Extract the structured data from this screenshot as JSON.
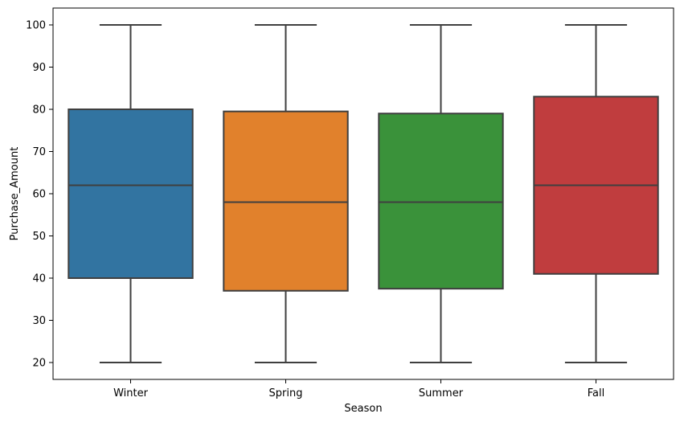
{
  "chart_data": {
    "type": "box",
    "title": "",
    "xlabel": "Season",
    "ylabel": "Purchase_Amount",
    "ylim": [
      16,
      104
    ],
    "yticks": [
      20,
      30,
      40,
      50,
      60,
      70,
      80,
      90,
      100
    ],
    "grid": false,
    "categories": [
      "Winter",
      "Spring",
      "Summer",
      "Fall"
    ],
    "boxes": [
      {
        "category": "Winter",
        "min": 20,
        "q1": 40,
        "median": 62,
        "q3": 80,
        "max": 100,
        "color": "#3274a1"
      },
      {
        "category": "Spring",
        "min": 20,
        "q1": 37,
        "median": 58,
        "q3": 79.5,
        "max": 100,
        "color": "#e1812c"
      },
      {
        "category": "Summer",
        "min": 20,
        "q1": 37.5,
        "median": 58,
        "q3": 79,
        "max": 100,
        "color": "#3a923a"
      },
      {
        "category": "Fall",
        "min": 20,
        "q1": 41,
        "median": 62,
        "q3": 83,
        "max": 100,
        "color": "#c03d3e"
      }
    ]
  }
}
